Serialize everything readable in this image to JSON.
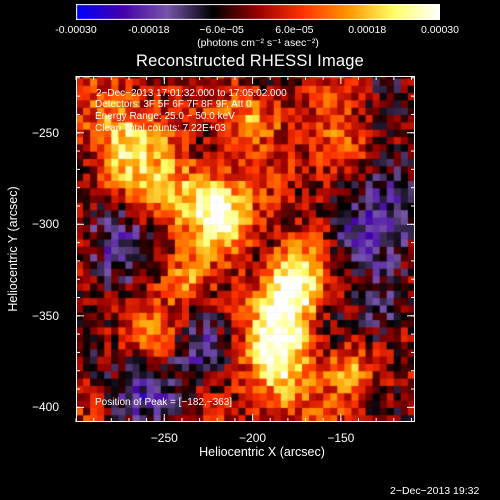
{
  "colorbar": {
    "ticks": [
      "-0.00030",
      "-0.00018",
      "−6.0e−05",
      "6.0e−05",
      "0.00018",
      "0.00030"
    ],
    "tick_values": [
      -0.0003,
      -0.00018,
      -6e-05,
      6e-05,
      0.00018,
      0.0003
    ],
    "unit_label": "(photons cm⁻² s⁻¹ asec⁻²)",
    "range": [
      -0.0003,
      0.0003
    ]
  },
  "annotations": {
    "time_range": "2−Dec−2013 17:01:32.000 to 17:05:02.000",
    "detectors": "Detectors: 3F 5F 6F 7F 8F 9F, Att 0",
    "energy": "Energy Range: 25.0 − 50.0 keV",
    "clean": "Clean     Total counts: 7.22E+03",
    "peak": "Position of Peak = [−182,−363]"
  },
  "footer": "2−Dec−2013 19:32",
  "chart_data": {
    "type": "heatmap",
    "title": "Reconstructed RHESSI Image",
    "xlabel": "Heliocentric X (arcsec)",
    "ylabel": "Heliocentric Y (arcsec)",
    "xlim": [
      -300,
      -108
    ],
    "ylim": [
      -408,
      -219
    ],
    "x_ticks": [
      -250,
      -200,
      -150
    ],
    "x_tick_labels": [
      "−250",
      "−200",
      "−150"
    ],
    "y_ticks": [
      -250,
      -300,
      -350,
      -400
    ],
    "y_tick_labels": [
      "−250",
      "−300",
      "−350",
      "−400"
    ],
    "colormap": [
      "#0000ff",
      "#4400aa",
      "#7755aa",
      "#000000",
      "#990000",
      "#ff3300",
      "#ff9900",
      "#ffff66",
      "#ffffff"
    ],
    "peak_position": [
      -182,
      -363
    ],
    "pixel_size_arcsec": 4,
    "blobs": [
      {
        "x": -185,
        "y": -365,
        "sx": 12,
        "sy": 26,
        "amp": 1.0
      },
      {
        "x": -175,
        "y": -330,
        "sx": 10,
        "sy": 14,
        "amp": 0.85
      },
      {
        "x": -230,
        "y": -285,
        "sx": 18,
        "sy": 14,
        "amp": 0.8
      },
      {
        "x": -215,
        "y": -300,
        "sx": 10,
        "sy": 10,
        "amp": 0.7
      },
      {
        "x": -270,
        "y": -255,
        "sx": 16,
        "sy": 20,
        "amp": 0.7
      },
      {
        "x": -150,
        "y": -260,
        "sx": 12,
        "sy": 12,
        "amp": 0.6
      },
      {
        "x": -200,
        "y": -240,
        "sx": 12,
        "sy": 10,
        "amp": 0.55
      },
      {
        "x": -145,
        "y": -380,
        "sx": 10,
        "sy": 10,
        "amp": 0.55
      },
      {
        "x": -240,
        "y": -330,
        "sx": 10,
        "sy": 10,
        "amp": 0.45
      },
      {
        "x": -255,
        "y": -360,
        "sx": 9,
        "sy": 9,
        "amp": 0.35
      },
      {
        "x": -125,
        "y": -280,
        "sx": 14,
        "sy": 20,
        "amp": -0.6
      },
      {
        "x": -145,
        "y": -310,
        "sx": 10,
        "sy": 14,
        "amp": -0.5
      },
      {
        "x": -280,
        "y": -310,
        "sx": 14,
        "sy": 16,
        "amp": -0.55
      },
      {
        "x": -260,
        "y": -390,
        "sx": 18,
        "sy": 12,
        "amp": -0.5
      },
      {
        "x": -230,
        "y": -370,
        "sx": 10,
        "sy": 10,
        "amp": -0.4
      },
      {
        "x": -125,
        "y": -350,
        "sx": 10,
        "sy": 16,
        "amp": -0.45
      }
    ]
  }
}
